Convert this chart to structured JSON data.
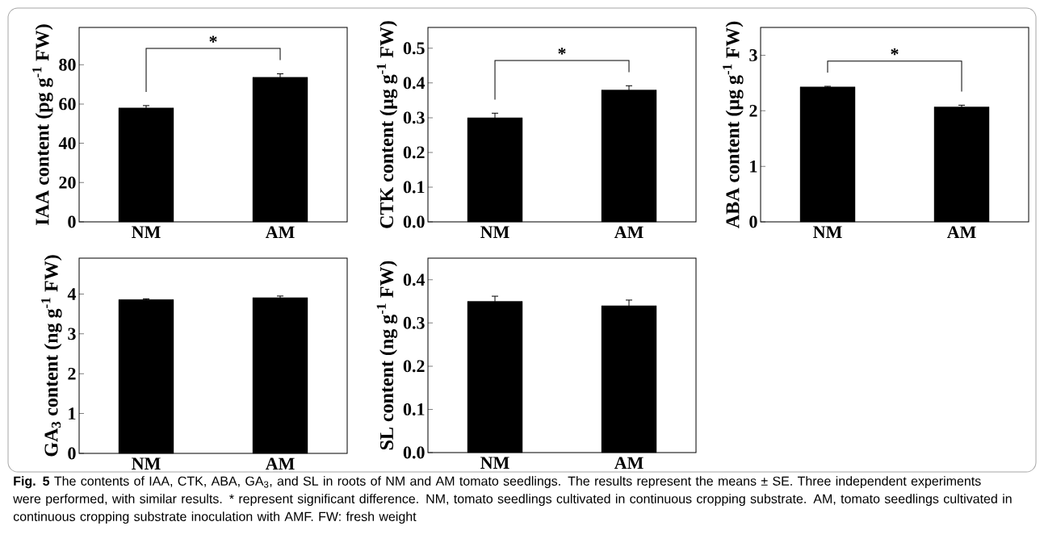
{
  "chart_data": [
    {
      "type": "bar",
      "ylabel": "IAA content (pg g$^{-1}$ FW)",
      "categories": [
        "NM",
        "AM"
      ],
      "values": [
        58,
        73.6
      ],
      "errors": [
        1.2,
        1.8
      ],
      "color": "#000000",
      "ylim": [
        0,
        99
      ],
      "yticks": [
        0,
        20,
        40,
        60,
        80
      ],
      "annotations": [
        "*"
      ]
    },
    {
      "type": "bar",
      "ylabel": "CTK content (μg g$^{-1}$ FW)",
      "categories": [
        "NM",
        "AM"
      ],
      "values": [
        0.3,
        0.38
      ],
      "errors": [
        0.013,
        0.012
      ],
      "color": "#000000",
      "ylim": [
        0,
        0.56
      ],
      "yticks": [
        {
          "value": 0,
          "label": "0.0"
        },
        0.1,
        0.2,
        0.3,
        0.4,
        0.5
      ],
      "annotations": [
        "*"
      ]
    },
    {
      "type": "bar",
      "ylabel": "ABA content (μg g$^{-1}$ FW)",
      "categories": [
        "NM",
        "AM"
      ],
      "values": [
        2.43,
        2.07
      ],
      "errors": [
        0.01,
        0.03
      ],
      "color": "#000000",
      "ylim": [
        0,
        3.5
      ],
      "yticks": [
        0,
        1,
        2,
        3
      ],
      "annotations": [
        "*"
      ]
    },
    {
      "type": "bar",
      "ylabel": "GA$_{3}$ content (ng g$^{-1}$ FW)",
      "categories": [
        "NM",
        "AM"
      ],
      "values": [
        3.86,
        3.91
      ],
      "errors": [
        0.02,
        0.04
      ],
      "color": "#000000",
      "ylim": [
        0,
        4.9
      ],
      "yticks": [
        0,
        1,
        2,
        3,
        4
      ]
    },
    {
      "type": "bar",
      "ylabel": "SL content (ng g$^{-1}$ FW)",
      "categories": [
        "NM",
        "AM"
      ],
      "values": [
        0.35,
        0.34
      ],
      "errors": [
        0.012,
        0.013
      ],
      "color": "#000000",
      "ylim": [
        0,
        0.45
      ],
      "yticks": [
        {
          "value": 0,
          "label": "0.0"
        },
        0.1,
        0.2,
        0.3,
        0.4
      ],
      "annotations": [
        "**Fig. 5** The contents of IAA, CTK, ABA, GA$_{3}$, and SL in roots of NM and AM tomato seedlings. The results represent the means ± SE. Three independent experiments were performed, with similar results. * represent significant difference. NM, tomato seedlings cultivated in continuous cropping substrate. AM, tomato seedlings cultivated in continuous cropping substrate inoculation with AMF. FW: fresh weight"
      ]
    }
  ]
}
